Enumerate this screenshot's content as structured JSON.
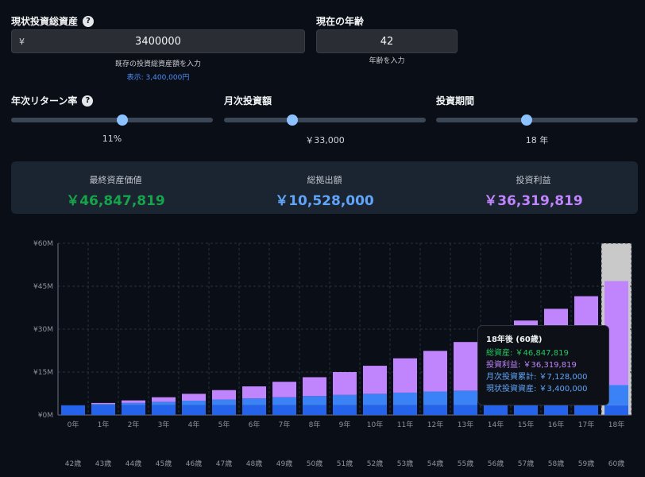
{
  "inputs": {
    "current_assets": {
      "label": "現状投資総資産",
      "currency": "¥",
      "value": "3400000",
      "hint": "既存の投資総資産額を入力",
      "display": "表示: 3,400,000円"
    },
    "age": {
      "label": "現在の年齢",
      "value": "42",
      "hint": "年齢を入力"
    }
  },
  "sliders": {
    "return": {
      "label": "年次リターン率",
      "value_text": "11%",
      "level": 0.5
    },
    "monthly": {
      "label": "月次投資額",
      "value_text": "￥33,000",
      "level": 0.33
    },
    "period": {
      "label": "投資期間",
      "value_text": "18 年",
      "level": 0.45
    }
  },
  "summary": {
    "final": {
      "title": "最終資産価値",
      "value": "￥46,847,819",
      "color": "#16a34a"
    },
    "contrib": {
      "title": "総拠出額",
      "value": "￥10,528,000",
      "color": "#60a5fa"
    },
    "profit": {
      "title": "投資利益",
      "value": "￥36,319,819",
      "color": "#c084fc"
    }
  },
  "tooltip": {
    "title": "18年後 (60歳)",
    "total": "総資産: ￥46,847,819",
    "profit": "投資利益: ￥36,319,819",
    "monthly": "月次投資累計: ￥7,128,000",
    "initial": "現状投資資産: ￥3,400,000"
  },
  "chart_data": {
    "type": "bar",
    "stacked": true,
    "categories": [
      "0年",
      "1年",
      "2年",
      "3年",
      "4年",
      "5年",
      "6年",
      "7年",
      "8年",
      "9年",
      "10年",
      "11年",
      "12年",
      "13年",
      "14年",
      "15年",
      "16年",
      "17年",
      "18年"
    ],
    "ages": [
      "42歳",
      "43歳",
      "44歳",
      "45歳",
      "46歳",
      "47歳",
      "48歳",
      "49歳",
      "50歳",
      "51歳",
      "52歳",
      "53歳",
      "54歳",
      "55歳",
      "56歳",
      "57歳",
      "58歳",
      "59歳",
      "60歳"
    ],
    "yticks": [
      "¥0M",
      "¥15M",
      "¥30M",
      "¥45M",
      "¥60M"
    ],
    "ylim": [
      0,
      60
    ],
    "highlight_index": 18,
    "series": [
      {
        "name": "現状投資資産",
        "color": "#2563eb",
        "values": [
          3.4,
          3.4,
          3.4,
          3.4,
          3.4,
          3.4,
          3.4,
          3.4,
          3.4,
          3.4,
          3.4,
          3.4,
          3.4,
          3.4,
          3.4,
          3.4,
          3.4,
          3.4,
          3.4
        ]
      },
      {
        "name": "月次投資累計",
        "color": "#3b82f6",
        "values": [
          0,
          0.4,
          0.8,
          1.2,
          1.6,
          2.0,
          2.4,
          2.8,
          3.2,
          3.6,
          4.0,
          4.4,
          4.8,
          5.1,
          5.5,
          5.9,
          6.3,
          6.7,
          7.1
        ]
      },
      {
        "name": "投資利益",
        "color": "#c084fc",
        "values": [
          0,
          0.4,
          0.9,
          1.6,
          2.4,
          3.3,
          4.2,
          5.4,
          6.6,
          8.0,
          9.8,
          12.0,
          14.2,
          17.0,
          20.4,
          23.7,
          27.4,
          31.4,
          36.3
        ]
      }
    ]
  }
}
